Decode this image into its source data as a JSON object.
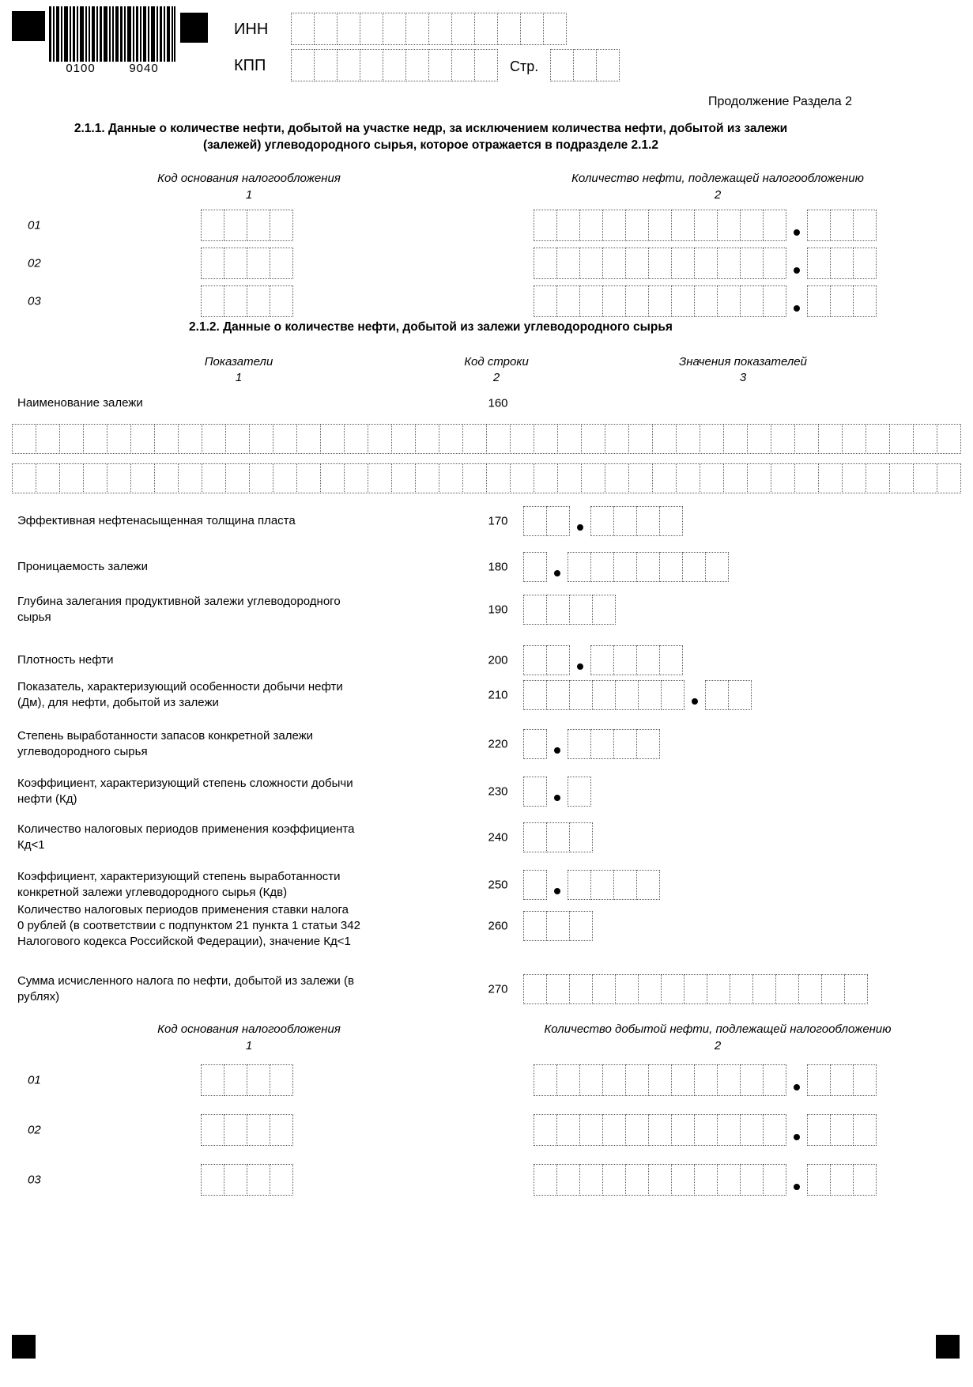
{
  "form_header": {
    "barcode_left": "0100",
    "barcode_right": "9040",
    "inn_label": "ИНН",
    "kpp_label": "КПП",
    "page_label": "Стр.",
    "continuation_note": "Продолжение Раздела 2"
  },
  "section_2_1_1": {
    "title_line_1": "2.1.1. Данные о количестве нефти, добытой на участке недр, за исключением количества нефти, добытой из залежи",
    "title_line_2": "(залежей) углеводородного сырья, которое отражается в подразделе 2.1.2",
    "col1_header": "Код основания налогообложения",
    "col1_num": "1",
    "col2_header": "Количество нефти, подлежащей налогообложению",
    "col2_num": "2",
    "row_labels": [
      "01",
      "02",
      "03"
    ]
  },
  "section_2_1_2": {
    "title": "2.1.2. Данные о количестве нефти, добытой из залежи углеводородного сырья",
    "col1_header": "Показатели",
    "col1_num": "1",
    "col2_header": "Код строки",
    "col2_num": "2",
    "col3_header": "Значения показателей",
    "col3_num": "3",
    "rows": [
      {
        "label": "Наименование залежи",
        "code": "160"
      },
      {
        "label": "Эффективная нефтенасыщенная толщина пласта",
        "code": "170"
      },
      {
        "label": "Проницаемость залежи",
        "code": "180"
      },
      {
        "label": "Глубина залегания продуктивной залежи углеводородного\nсырья",
        "code": "190"
      },
      {
        "label": "Плотность нефти",
        "code": "200"
      },
      {
        "label": "Показатель, характеризующий особенности добычи нефти\n(Дм), для нефти, добытой из залежи",
        "code": "210"
      },
      {
        "label": "Степень выработанности запасов конкретной залежи\nуглеводородного сырья",
        "code": "220"
      },
      {
        "label": "Коэффициент, характеризующий степень сложности добычи\nнефти (Кд)",
        "code": "230"
      },
      {
        "label": "Количество налоговых периодов применения коэффициента\nКд<1",
        "code": "240"
      },
      {
        "label": "Коэффициент, характеризующий степень выработанности\nконкретной залежи углеводородного сырья (Кдв)",
        "code": "250"
      },
      {
        "label": "Количество налоговых периодов применения ставки налога\n0 рублей (в соответствии с подпунктом 21 пункта 1 статьи 342\nНалогового кодекса Российской Федерации), значение Кд<1",
        "code": "260"
      },
      {
        "label": "Сумма исчисленного налога по нефти, добытой из залежи (в\nрублях)",
        "code": "270"
      }
    ]
  },
  "bottom_table": {
    "col1_header": "Код основания налогообложения",
    "col1_num": "1",
    "col2_header": "Количество добытой нефти, подлежащей налогообложению",
    "col2_num": "2",
    "row_labels": [
      "01",
      "02",
      "03"
    ]
  }
}
